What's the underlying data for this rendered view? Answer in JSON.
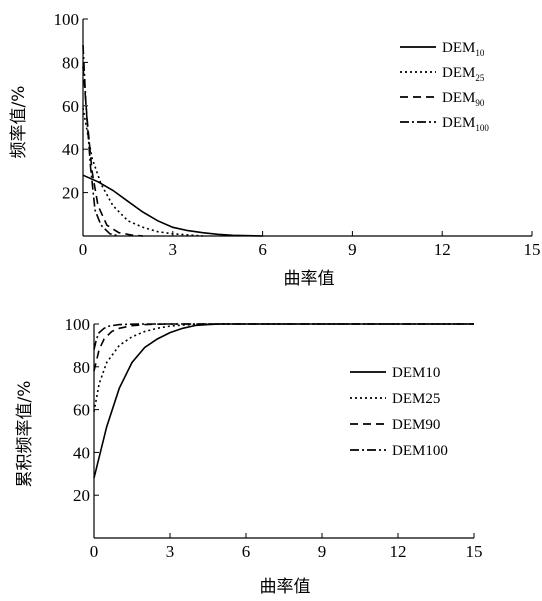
{
  "chart_data": [
    {
      "type": "line",
      "xlabel": "曲率值",
      "ylabel": "频率值/%",
      "xlim": [
        0,
        15
      ],
      "ylim": [
        0,
        100
      ],
      "x_ticks": [
        "0",
        "3",
        "6",
        "9",
        "12",
        "15"
      ],
      "y_ticks": [
        "20",
        "40",
        "60",
        "80",
        "100"
      ],
      "legend_position": "top-right",
      "series": [
        {
          "name": "DEM",
          "sub": "10",
          "dash": "solid",
          "x": [
            0,
            0.5,
            1,
            1.5,
            2,
            2.5,
            3,
            3.5,
            4,
            4.5,
            5,
            6
          ],
          "y": [
            28,
            25,
            21,
            16,
            11,
            7,
            4,
            2.5,
            1.5,
            0.8,
            0.3,
            0
          ]
        },
        {
          "name": "DEM",
          "sub": "25",
          "dash": "dotted",
          "x": [
            0,
            0.3,
            0.6,
            1,
            1.5,
            2,
            2.5,
            3,
            3.5,
            4
          ],
          "y": [
            59,
            36,
            24,
            14,
            7,
            4,
            2,
            1,
            0.5,
            0
          ]
        },
        {
          "name": "DEM",
          "sub": "90",
          "dash": "dashed",
          "x": [
            0,
            0.15,
            0.3,
            0.5,
            0.8,
            1.2,
            1.6,
            2
          ],
          "y": [
            78,
            52,
            30,
            14,
            5,
            1.5,
            0.5,
            0
          ]
        },
        {
          "name": "DEM",
          "sub": "100",
          "dash": "dashdot",
          "x": [
            0,
            0.1,
            0.25,
            0.4,
            0.6,
            0.9,
            1.2
          ],
          "y": [
            88,
            60,
            32,
            12,
            5,
            1,
            0
          ]
        }
      ]
    },
    {
      "type": "line",
      "xlabel": "曲率值",
      "ylabel": "累积频率值/%",
      "xlim": [
        0,
        15
      ],
      "ylim": [
        0,
        100
      ],
      "x_ticks": [
        "0",
        "3",
        "6",
        "9",
        "12",
        "15"
      ],
      "y_ticks": [
        "20",
        "40",
        "60",
        "80",
        "100"
      ],
      "legend_position": "right",
      "series": [
        {
          "name": "DEM10",
          "dash": "solid",
          "x": [
            0,
            0.5,
            1,
            1.5,
            2,
            2.5,
            3,
            3.5,
            4,
            4.5,
            5,
            6,
            15
          ],
          "y": [
            28,
            52,
            70,
            82,
            89,
            93,
            96,
            98,
            99.3,
            99.7,
            100,
            100,
            100
          ]
        },
        {
          "name": "DEM25",
          "dash": "dotted",
          "x": [
            0,
            0.2,
            0.5,
            1,
            1.5,
            2,
            2.5,
            3,
            3.5,
            4,
            4.5,
            15
          ],
          "y": [
            59,
            72,
            82,
            90,
            94,
            96.5,
            98,
            99,
            99.5,
            99.8,
            100,
            100
          ]
        },
        {
          "name": "DEM90",
          "dash": "dashed",
          "x": [
            0,
            0.2,
            0.4,
            0.7,
            1,
            1.5,
            2,
            2.5,
            3,
            15
          ],
          "y": [
            78,
            88,
            93,
            96.5,
            98,
            99.2,
            99.7,
            99.9,
            100,
            100
          ]
        },
        {
          "name": "DEM100",
          "dash": "dashdot",
          "x": [
            0,
            0.1,
            0.2,
            0.4,
            0.6,
            1,
            1.5,
            2,
            15
          ],
          "y": [
            88,
            93,
            96,
            98,
            99,
            99.7,
            99.9,
            100,
            100
          ]
        }
      ]
    }
  ]
}
